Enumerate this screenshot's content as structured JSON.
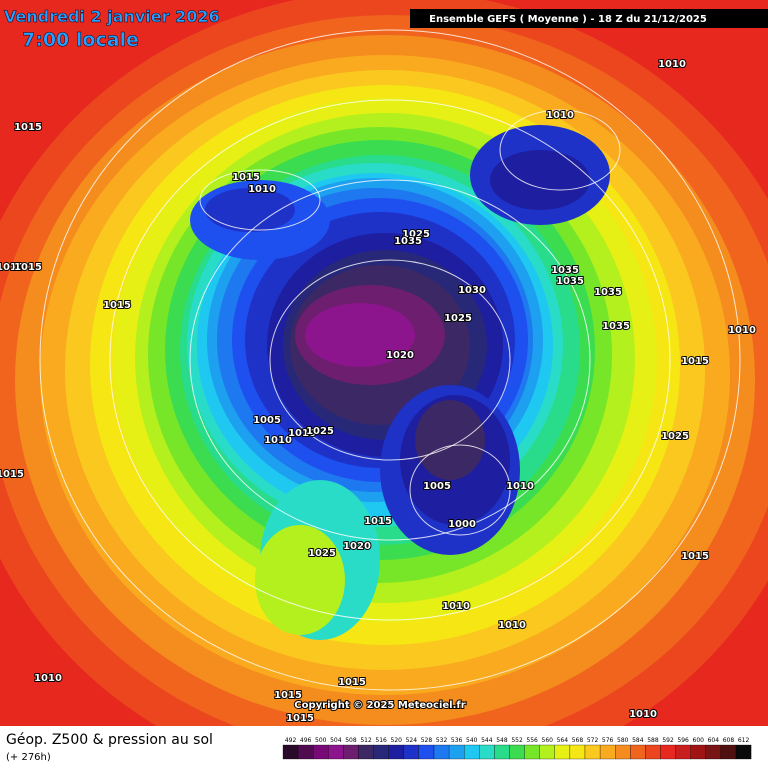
{
  "header": {
    "date": "Vendredi 2 janvier 2026",
    "time": "7:00 locale",
    "run": "Ensemble GEFS  ( Moyenne )  -  18 Z du 21/12/2025"
  },
  "footer": {
    "title": "Géop. Z500 & pression au sol",
    "lead": "(+ 276h)",
    "copyright": "Copyright © 2025 Meteociel.fr"
  },
  "isobar_labels": [
    "1010",
    "1015",
    "1010",
    "1015",
    "1010",
    "1025",
    "1035",
    "1035",
    "1035",
    "1030",
    "1035",
    "1015",
    "1025",
    "1035",
    "1020",
    "1015",
    "1010",
    "1005",
    "1010",
    "1010",
    "1025",
    "1025",
    "1005",
    "1010",
    "1000",
    "1015",
    "1020",
    "1025",
    "1015",
    "1010",
    "1010",
    "1010",
    "1015",
    "1015",
    "1010",
    "1015",
    "1010",
    "1015",
    "1015"
  ],
  "colorbar": {
    "labels": [
      "492",
      "496",
      "500",
      "504",
      "508",
      "512",
      "516",
      "520",
      "524",
      "528",
      "532",
      "536",
      "540",
      "544",
      "548",
      "552",
      "556",
      "560",
      "564",
      "568",
      "572",
      "576",
      "580",
      "584",
      "588",
      "592",
      "596",
      "600",
      "604",
      "608",
      "612"
    ],
    "colors": [
      "#2a0a2a",
      "#500a50",
      "#780a78",
      "#8c148c",
      "#6e1e6e",
      "#3c2864",
      "#282878",
      "#1e1ea0",
      "#1e32c8",
      "#1e50f0",
      "#1e78f0",
      "#1ea0f0",
      "#1ec8f0",
      "#28dcc8",
      "#28dc8c",
      "#3cdc50",
      "#78e628",
      "#b4f01e",
      "#e6f014",
      "#f5e614",
      "#fac81e",
      "#faaa1e",
      "#f58c1e",
      "#f0641e",
      "#eb461e",
      "#e6281e",
      "#c81e1e",
      "#a01414",
      "#781414",
      "#501010",
      "#0a0a0a"
    ]
  }
}
